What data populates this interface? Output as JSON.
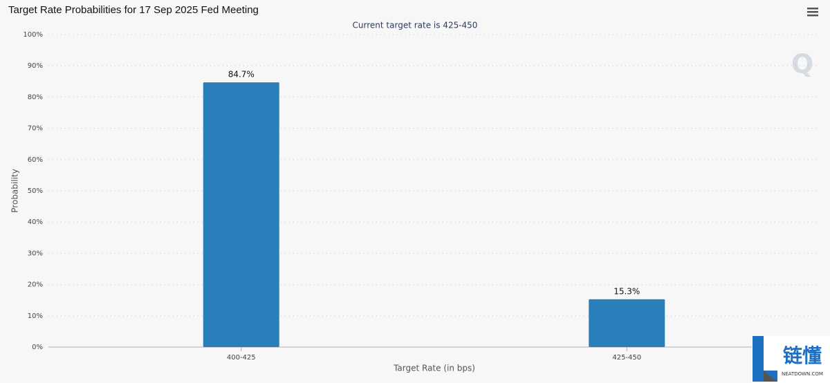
{
  "chart_data": {
    "type": "bar",
    "title": "Target Rate Probabilities for 17 Sep 2025 Fed Meeting",
    "subtitle": "Current target rate is 425-450",
    "x_label": "Target Rate (in bps)",
    "y_label": "Probability",
    "categories": [
      "400-425",
      "425-450"
    ],
    "values": [
      84.7,
      15.3
    ],
    "value_labels": [
      "84.7%",
      "15.3%"
    ],
    "color": "#2a7fba",
    "ylim": [
      0,
      100
    ],
    "yticks": [
      {
        "value": 0,
        "label": "0%"
      },
      {
        "value": 10,
        "label": "10%"
      },
      {
        "value": 20,
        "label": "20%"
      },
      {
        "value": 30,
        "label": "30%"
      },
      {
        "value": 40,
        "label": "40%"
      },
      {
        "value": 50,
        "label": "50%"
      },
      {
        "value": 60,
        "label": "60%"
      },
      {
        "value": 70,
        "label": "70%"
      },
      {
        "value": 80,
        "label": "80%"
      },
      {
        "value": 90,
        "label": "90%"
      },
      {
        "value": 100,
        "label": "100%"
      }
    ],
    "grid": true
  },
  "watermark": {
    "logo": "Q",
    "brand": "链懂",
    "site": "NEATDOWN.COM"
  }
}
